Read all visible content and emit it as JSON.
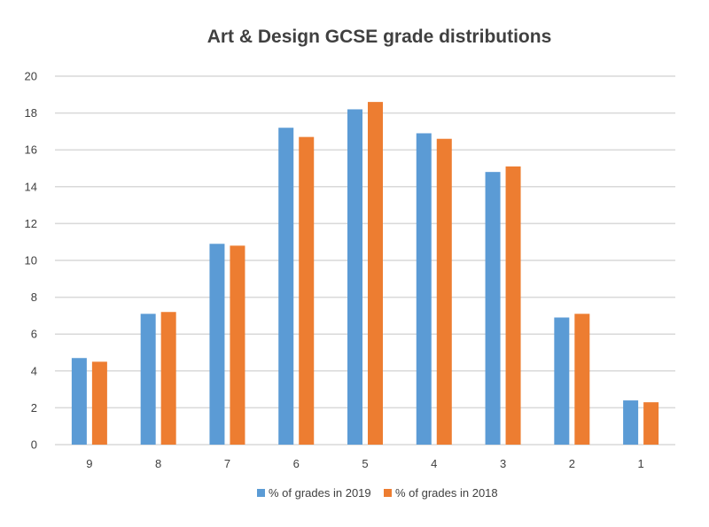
{
  "chart_data": {
    "type": "bar",
    "title": "Art & Design GCSE grade distributions",
    "xlabel": "",
    "ylabel": "",
    "categories": [
      "9",
      "8",
      "7",
      "6",
      "5",
      "4",
      "3",
      "2",
      "1"
    ],
    "series": [
      {
        "name": "% of grades in 2019",
        "color": "#5b9bd5",
        "values": [
          4.7,
          7.1,
          10.9,
          17.2,
          18.2,
          16.9,
          14.8,
          6.9,
          2.4
        ]
      },
      {
        "name": "% of grades in 2018",
        "color": "#ed7d31",
        "values": [
          4.5,
          7.2,
          10.8,
          16.7,
          18.6,
          16.6,
          15.1,
          7.1,
          2.3
        ]
      }
    ],
    "ylim": [
      0,
      20
    ],
    "yticks": [
      0,
      2,
      4,
      6,
      8,
      10,
      12,
      14,
      16,
      18,
      20
    ],
    "grid": true,
    "legend_position": "bottom"
  }
}
